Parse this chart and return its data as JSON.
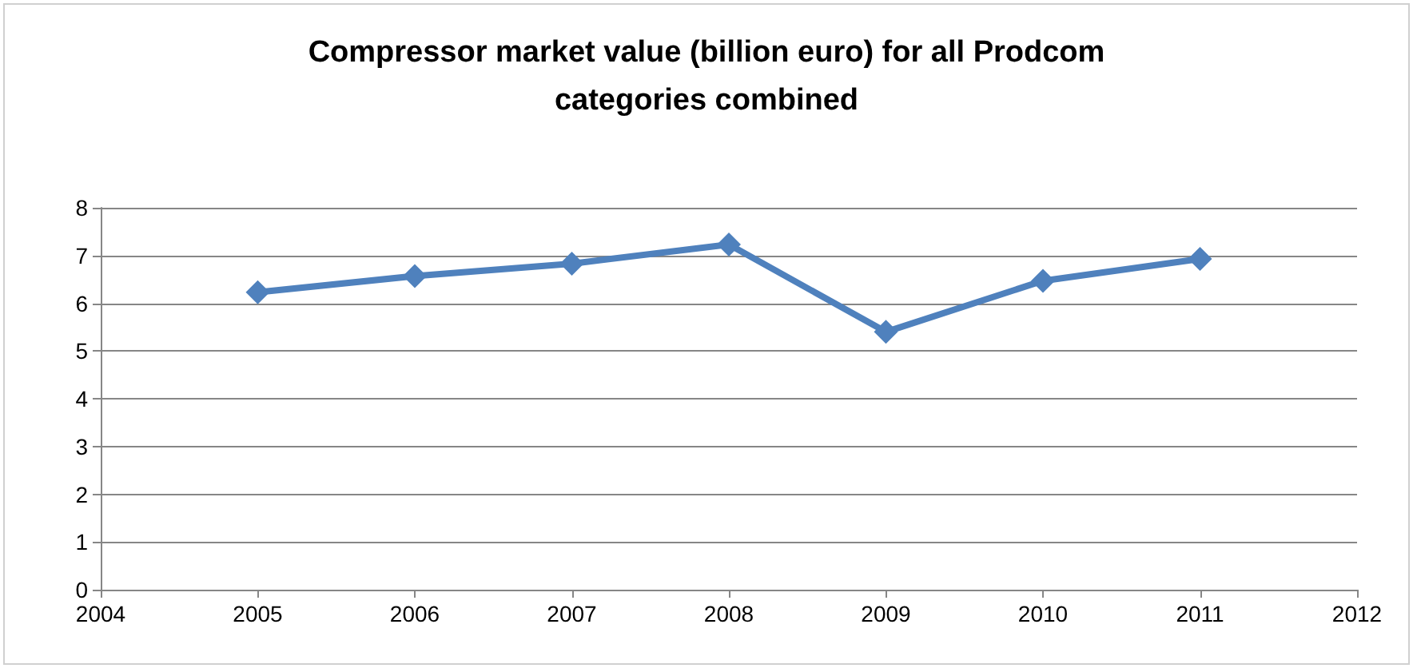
{
  "chart_data": {
    "type": "line",
    "title": "Compressor market value (billion euro) for all Prodcom\ncategories combined",
    "x": [
      2005,
      2006,
      2007,
      2008,
      2009,
      2010,
      2011
    ],
    "series": [
      {
        "color": "#4f81bd",
        "values": [
          6.23,
          6.57,
          6.83,
          7.23,
          5.4,
          6.47,
          6.93
        ]
      }
    ],
    "xlim": [
      2004,
      2012
    ],
    "xticks": [
      2004,
      2005,
      2006,
      2007,
      2008,
      2009,
      2010,
      2011,
      2012
    ],
    "ylim": [
      0,
      8
    ],
    "yticks": [
      0,
      1,
      2,
      3,
      4,
      5,
      6,
      7,
      8
    ],
    "grid": "y",
    "marker": "diamond",
    "line_style": "solid"
  }
}
